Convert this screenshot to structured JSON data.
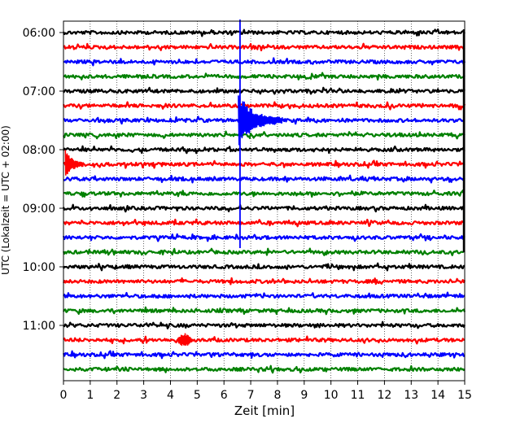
{
  "chart_data": {
    "type": "line",
    "title": "",
    "xlabel": "Zeit  [min]",
    "ylabel": "UTC (Lokalzeit = UTC + 02:00)",
    "xlim": [
      0,
      15
    ],
    "x_ticks": [
      0,
      1,
      2,
      3,
      4,
      5,
      6,
      7,
      8,
      9,
      10,
      11,
      12,
      13,
      14,
      15
    ],
    "y_tick_labels": [
      "06:00",
      "07:00",
      "08:00",
      "09:00",
      "10:00",
      "11:00"
    ],
    "traces_per_hour": 4,
    "minutes_per_trace": 15,
    "grid": "vertical dotted",
    "colors": [
      "#000000",
      "#ff0000",
      "#0000ff",
      "#008000"
    ],
    "traces": [
      {
        "start": "06:00",
        "color": "#000000"
      },
      {
        "start": "06:15",
        "color": "#ff0000"
      },
      {
        "start": "06:30",
        "color": "#0000ff"
      },
      {
        "start": "06:45",
        "color": "#008000"
      },
      {
        "start": "07:00",
        "color": "#000000"
      },
      {
        "start": "07:15",
        "color": "#ff0000"
      },
      {
        "start": "07:30",
        "color": "#0000ff",
        "event_at_min": 6.6,
        "event_type": "large earthquake"
      },
      {
        "start": "07:45",
        "color": "#008000"
      },
      {
        "start": "08:00",
        "color": "#000000"
      },
      {
        "start": "08:15",
        "color": "#ff0000",
        "event_at_min": 0.1,
        "event_type": "coda"
      },
      {
        "start": "08:30",
        "color": "#0000ff"
      },
      {
        "start": "08:45",
        "color": "#008000"
      },
      {
        "start": "09:00",
        "color": "#000000"
      },
      {
        "start": "09:15",
        "color": "#ff0000"
      },
      {
        "start": "09:30",
        "color": "#0000ff"
      },
      {
        "start": "09:45",
        "color": "#008000"
      },
      {
        "start": "10:00",
        "color": "#000000"
      },
      {
        "start": "10:15",
        "color": "#ff0000"
      },
      {
        "start": "10:30",
        "color": "#0000ff"
      },
      {
        "start": "10:45",
        "color": "#008000"
      },
      {
        "start": "11:00",
        "color": "#000000"
      },
      {
        "start": "11:15",
        "color": "#ff0000",
        "event_at_min": 4.5,
        "event_type": "small event"
      },
      {
        "start": "11:30",
        "color": "#0000ff"
      },
      {
        "start": "11:45",
        "color": "#008000"
      }
    ]
  }
}
